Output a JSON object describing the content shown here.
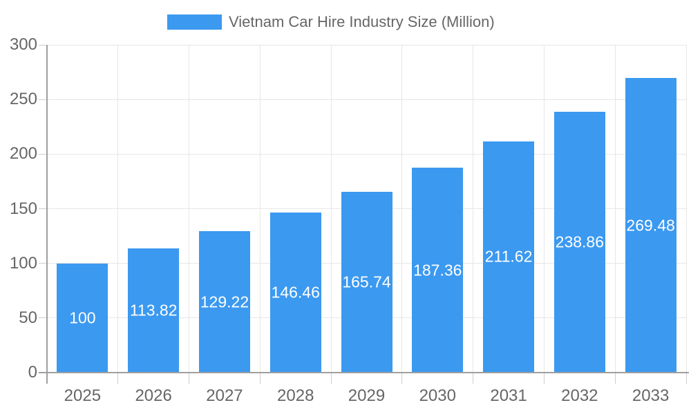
{
  "chart_data": {
    "type": "bar",
    "title": "",
    "legend": {
      "position": "top",
      "entries": [
        {
          "label": "Vietnam Car Hire Industry Size (Million)",
          "color": "#3B99F0"
        }
      ]
    },
    "categories": [
      "2025",
      "2026",
      "2027",
      "2028",
      "2029",
      "2030",
      "2031",
      "2032",
      "2033"
    ],
    "series": [
      {
        "name": "Vietnam Car Hire Industry Size (Million)",
        "values": [
          100,
          113.82,
          129.22,
          146.46,
          165.74,
          187.36,
          211.62,
          238.86,
          269.48
        ]
      }
    ],
    "value_labels": [
      "100",
      "113.82",
      "129.22",
      "146.46",
      "165.74",
      "187.36",
      "211.62",
      "238.86",
      "269.48"
    ],
    "xlabel": "",
    "ylabel": "",
    "ylim": [
      0,
      300
    ],
    "yticks": [
      0,
      50,
      100,
      150,
      200,
      250,
      300
    ],
    "grid": true,
    "colors": {
      "bar": "#3B99F0",
      "grid_line": "#e6e6e6",
      "tick_line": "#cccccc",
      "axis_line": "#9e9e9e",
      "axis_text": "#666666",
      "bar_label": "#ffffff",
      "background": "#ffffff"
    }
  }
}
